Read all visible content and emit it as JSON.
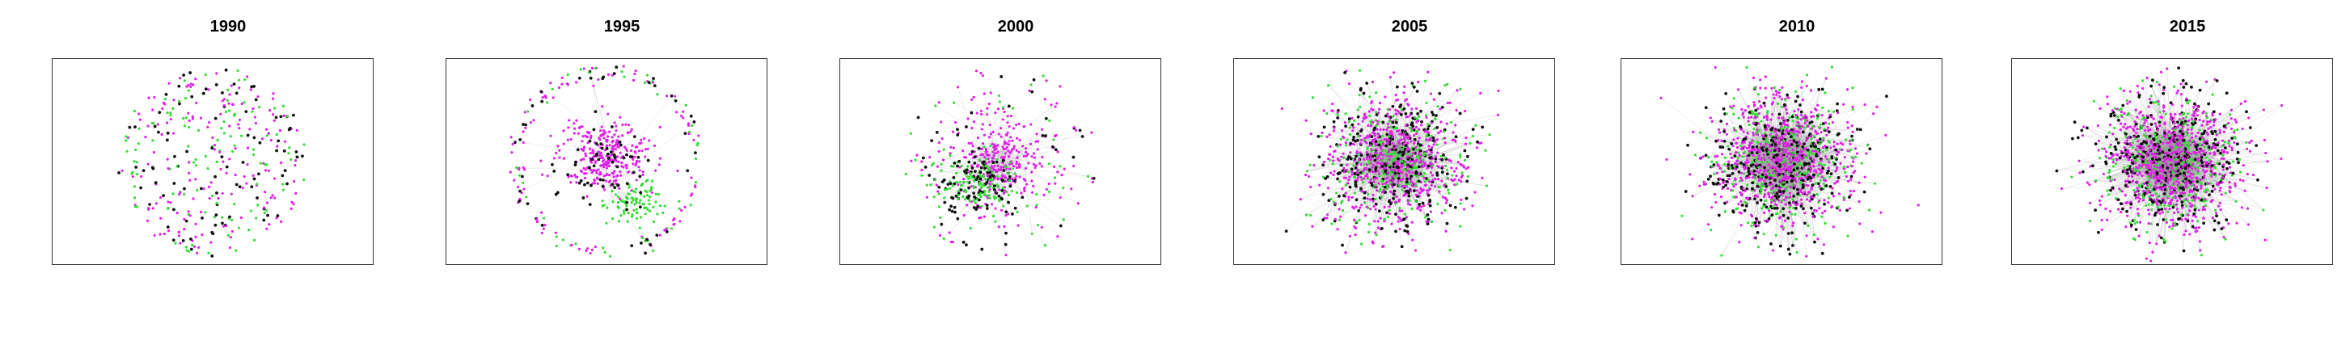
{
  "figure": {
    "panels": [
      {
        "title": "1990",
        "layout": "ring",
        "edge_density": 0.0,
        "colors": {
          "magenta": 0.45,
          "green": 0.3,
          "black": 0.25
        }
      },
      {
        "title": "1995",
        "layout": "ring-with-core",
        "edge_density": 0.05,
        "colors": {
          "magenta": 0.5,
          "green": 0.28,
          "black": 0.22
        }
      },
      {
        "title": "2000",
        "layout": "core-with-halo",
        "edge_density": 0.2,
        "colors": {
          "magenta": 0.45,
          "green": 0.35,
          "black": 0.2
        }
      },
      {
        "title": "2005",
        "layout": "dense-core",
        "edge_density": 0.5,
        "colors": {
          "magenta": 0.5,
          "green": 0.25,
          "black": 0.25
        }
      },
      {
        "title": "2010",
        "layout": "dense-core",
        "edge_density": 0.7,
        "colors": {
          "magenta": 0.5,
          "green": 0.25,
          "black": 0.25
        }
      },
      {
        "title": "2015",
        "layout": "dense-core",
        "edge_density": 0.8,
        "colors": {
          "magenta": 0.55,
          "green": 0.22,
          "black": 0.23
        }
      }
    ],
    "node_colors": {
      "magenta": "#e020e8",
      "green": "#33dd33",
      "black": "#111111",
      "edge": "#9a9a9a"
    }
  }
}
